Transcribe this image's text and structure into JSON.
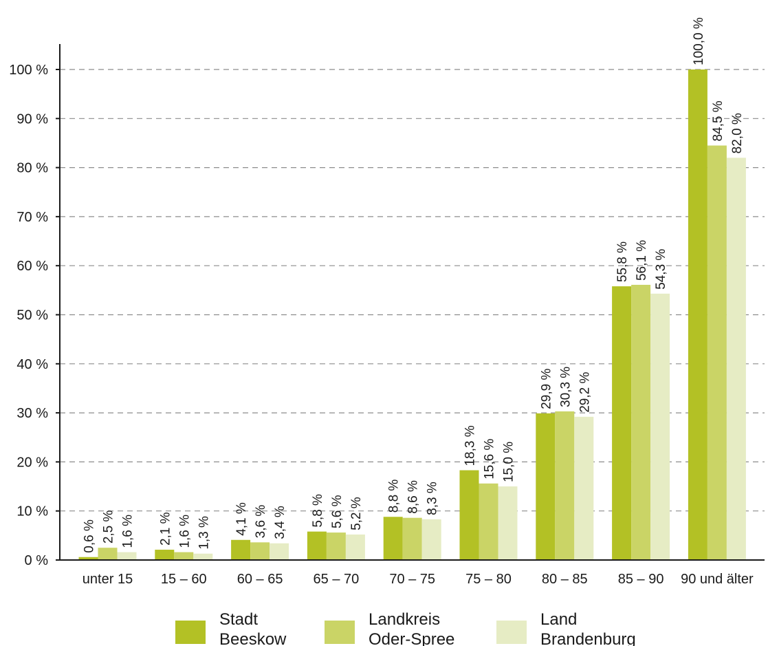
{
  "chart_data": {
    "type": "bar",
    "title": "",
    "xlabel": "",
    "ylabel": "",
    "ylim": [
      0,
      100
    ],
    "yticks": [
      0,
      10,
      20,
      30,
      40,
      50,
      60,
      70,
      80,
      90,
      100
    ],
    "ytick_suffix": " %",
    "grid": "horizontal-dashed",
    "legend_position": "bottom",
    "categories": [
      "unter 15",
      "15 – 60",
      "60 – 65",
      "65 – 70",
      "70 – 75",
      "75 – 80",
      "80 – 85",
      "85 – 90",
      "90 und älter"
    ],
    "series": [
      {
        "name": "Stadt Beeskow",
        "legend_lines": [
          "Stadt",
          "Beeskow"
        ],
        "color": "#b3c125",
        "values": [
          0.6,
          2.1,
          4.1,
          5.8,
          8.8,
          18.3,
          29.9,
          55.8,
          100.0
        ],
        "labels": [
          "0,6 %",
          "2,1 %",
          "4,1 %",
          "5,8 %",
          "8,8 %",
          "18,3 %",
          "29,9 %",
          "55,8 %",
          "100,0 %"
        ]
      },
      {
        "name": "Landkreis Oder-Spree",
        "legend_lines": [
          "Landkreis",
          "Oder-Spree"
        ],
        "color": "#cad466",
        "values": [
          2.5,
          1.6,
          3.6,
          5.6,
          8.6,
          15.6,
          30.3,
          56.1,
          84.5
        ],
        "labels": [
          "2,5 %",
          "1,6 %",
          "3,6 %",
          "5,6 %",
          "8,6 %",
          "15,6 %",
          "30,3 %",
          "56,1 %",
          "84,5 %"
        ]
      },
      {
        "name": "Land Brandenburg",
        "legend_lines": [
          "Land",
          "Brandenburg"
        ],
        "color": "#e6ecc4",
        "values": [
          1.6,
          1.3,
          3.4,
          5.2,
          8.3,
          15.0,
          29.2,
          54.3,
          82.0
        ],
        "labels": [
          "1,6 %",
          "1,3 %",
          "3,4 %",
          "5,2 %",
          "8,3 %",
          "15,0 %",
          "29,2 %",
          "54,3 %",
          "82,0 %"
        ]
      }
    ]
  }
}
